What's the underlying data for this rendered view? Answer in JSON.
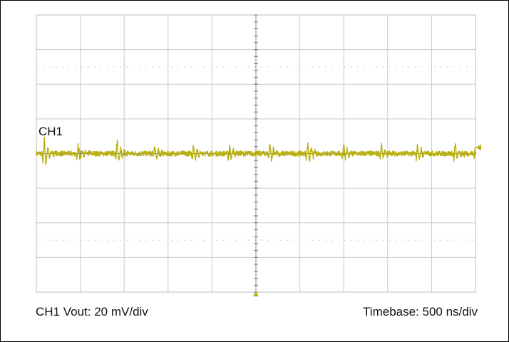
{
  "chart_data": {
    "type": "line",
    "title": "",
    "channel_label": "CH1",
    "captions": {
      "left": "CH1 Vout: 20 mV/div",
      "right": "Timebase: 500 ns/div"
    },
    "x_divisions": 10,
    "y_divisions": 8,
    "x_unit_per_div": "500 ns",
    "y_unit_per_div": "20 mV",
    "xlim": [
      0,
      5000
    ],
    "ylim": [
      -80,
      80
    ],
    "trace_offset_mv": 0,
    "trace_color": "#b8b010",
    "grid": true,
    "grid_color": "#c9c9c9",
    "series": [
      {
        "name": "CH1",
        "ringing_burst_times_ns": [
          80,
          470,
          910,
          1340,
          1780,
          2190,
          2650,
          3080,
          3490,
          3920,
          4330,
          4760,
          4990
        ],
        "ringing_peak_mv": [
          12,
          8,
          9,
          6,
          8,
          7,
          8,
          9,
          8,
          6,
          7,
          8,
          7
        ],
        "baseline_noise_mv": 1.5
      }
    ]
  }
}
